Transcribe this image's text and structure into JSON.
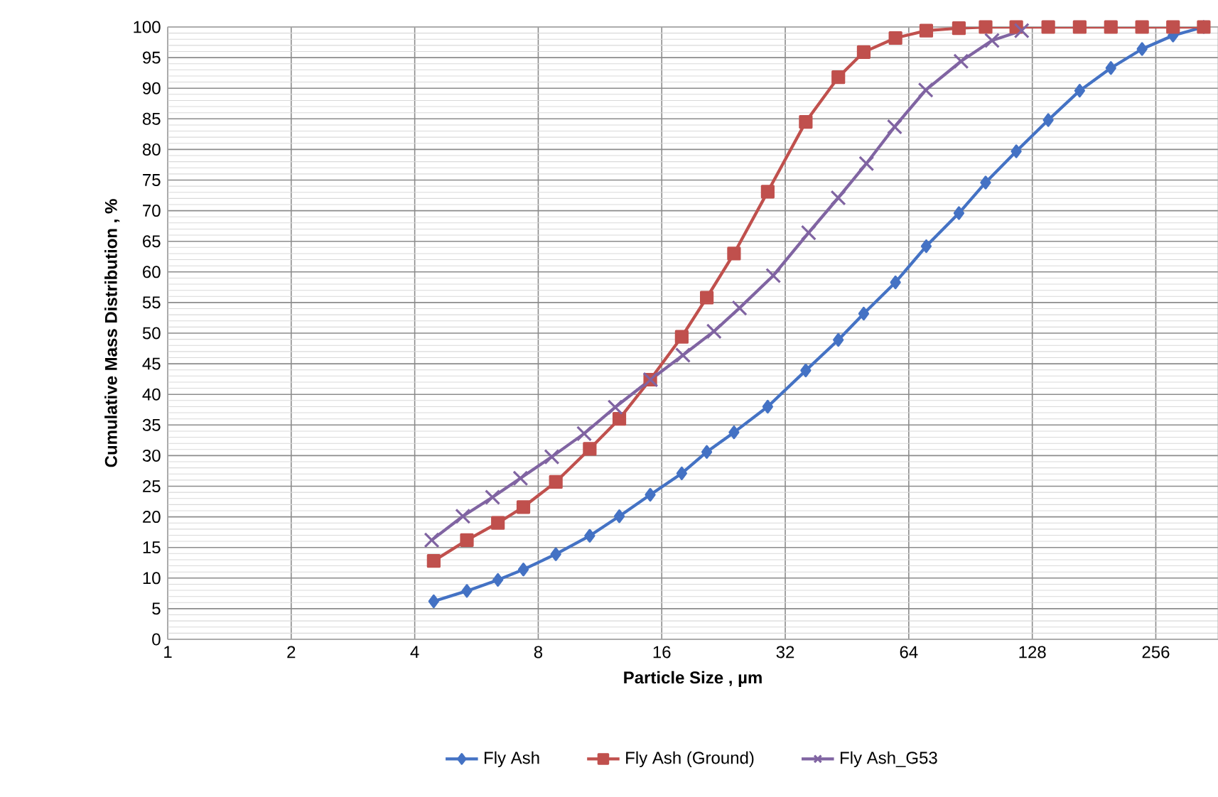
{
  "chart_data": {
    "type": "line",
    "xlabel": "Particle Size , µm",
    "ylabel": "Cumulative Mass Distribution , %",
    "log": "x",
    "xlim": [
      1,
      363
    ],
    "ylim": [
      0,
      100
    ],
    "xticks": [
      1,
      2,
      4,
      8,
      16,
      32,
      64,
      128,
      256
    ],
    "yticks": [
      0,
      5,
      10,
      15,
      20,
      25,
      30,
      35,
      40,
      45,
      50,
      55,
      60,
      65,
      70,
      75,
      80,
      85,
      90,
      95,
      100
    ],
    "grid": true,
    "legend": "bottom",
    "series": [
      {
        "name": "Fly Ash",
        "color": "#4472c4",
        "marker": "diamond",
        "x": [
          4.45,
          5.36,
          6.38,
          7.36,
          8.83,
          10.68,
          12.61,
          15.0,
          17.9,
          20.6,
          24.0,
          29.0,
          35.9,
          43.1,
          49.7,
          59.4,
          70.6,
          84.8,
          98.5,
          117,
          140,
          167,
          199,
          237,
          282,
          335
        ],
        "values": [
          6.2,
          7.9,
          9.7,
          11.4,
          13.9,
          16.9,
          20.1,
          23.6,
          27.1,
          30.6,
          33.8,
          38,
          43.9,
          48.9,
          53.2,
          58.3,
          64.2,
          69.6,
          74.6,
          79.7,
          84.8,
          89.6,
          93.3,
          96.4,
          98.6,
          100
        ]
      },
      {
        "name": "Fly Ash (Ground)",
        "color": "#c0504d",
        "marker": "square",
        "x": [
          4.45,
          5.36,
          6.38,
          7.36,
          8.83,
          10.68,
          12.61,
          15.0,
          17.9,
          20.6,
          24.0,
          29.0,
          35.9,
          43.1,
          49.7,
          59.4,
          70.6,
          84.8,
          98.5,
          117,
          140,
          167,
          199,
          237,
          282,
          335
        ],
        "values": [
          12.8,
          16.2,
          19,
          21.6,
          25.7,
          31.1,
          36,
          42.4,
          49.4,
          55.8,
          63,
          73.1,
          84.5,
          91.8,
          95.9,
          98.2,
          99.4,
          99.8,
          100,
          100,
          100,
          100,
          100,
          100,
          100,
          100
        ]
      },
      {
        "name": "Fly Ash_G53",
        "color": "#8064a2",
        "marker": "cross",
        "x": [
          4.4,
          5.24,
          6.19,
          7.24,
          8.63,
          10.35,
          12.32,
          15.02,
          18.02,
          21.45,
          24.75,
          29.92,
          36.48,
          43.07,
          50.46,
          59.12,
          70.37,
          85.8,
          102.1,
          120.6
        ],
        "values": [
          16.2,
          20.1,
          23.2,
          26.3,
          29.8,
          33.6,
          37.9,
          42.4,
          46.4,
          50.3,
          54.1,
          59.4,
          66.4,
          72.1,
          77.7,
          83.7,
          89.7,
          94.4,
          97.8,
          99.4
        ]
      }
    ]
  }
}
